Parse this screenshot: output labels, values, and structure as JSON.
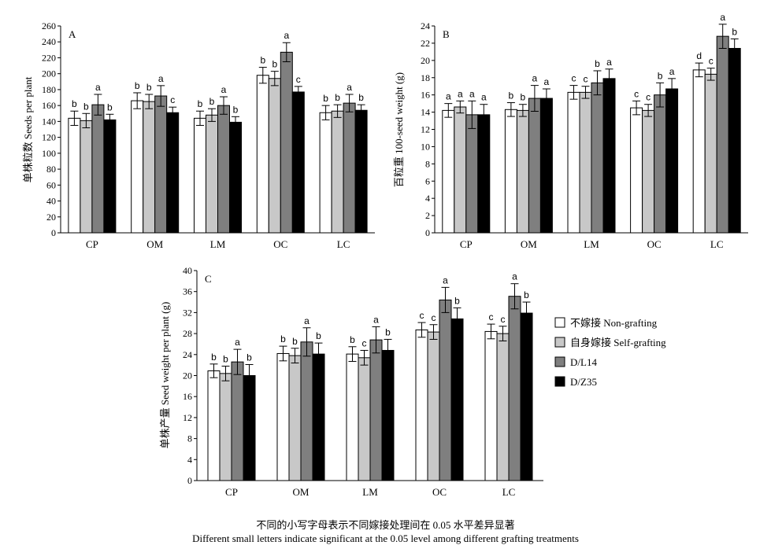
{
  "chart_data": [
    {
      "type": "bar",
      "panel_label": "A",
      "ylabel": "单株粒数 Seeds per plant",
      "ylim": [
        0,
        260
      ],
      "yticks": [
        0,
        20,
        40,
        60,
        80,
        100,
        120,
        140,
        160,
        180,
        200,
        220,
        240,
        260
      ],
      "categories": [
        "CP",
        "OM",
        "LM",
        "OC",
        "LC"
      ],
      "series": [
        {
          "name": "不嫁接 Non-grafting",
          "color": "#ffffff",
          "values": [
            144,
            166,
            144,
            198,
            151
          ],
          "errors": [
            9,
            10,
            9,
            10,
            9
          ],
          "letters": [
            "b",
            "b",
            "b",
            "b",
            "b"
          ]
        },
        {
          "name": "自身嫁接 Self-grafting",
          "color": "#c8c8c8",
          "values": [
            141,
            165,
            148,
            194,
            153
          ],
          "errors": [
            9,
            9,
            8,
            9,
            8
          ],
          "letters": [
            "b",
            "b",
            "b",
            "b",
            "b"
          ]
        },
        {
          "name": "D/L14",
          "color": "#7f7f7f",
          "values": [
            161,
            172,
            160,
            227,
            163
          ],
          "errors": [
            13,
            13,
            11,
            12,
            11
          ],
          "letters": [
            "a",
            "a",
            "a",
            "a",
            "a"
          ]
        },
        {
          "name": "D/Z35",
          "color": "#000000",
          "values": [
            142,
            151,
            139,
            177,
            154
          ],
          "errors": [
            7,
            7,
            7,
            7,
            7
          ],
          "letters": [
            "b",
            "c",
            "b",
            "c",
            "b"
          ]
        }
      ]
    },
    {
      "type": "bar",
      "panel_label": "B",
      "ylabel": "百粒重 100-seed weight (g)",
      "ylim": [
        0,
        24
      ],
      "yticks": [
        0,
        2,
        4,
        6,
        8,
        10,
        12,
        14,
        16,
        18,
        20,
        22,
        24
      ],
      "categories": [
        "CP",
        "OM",
        "LM",
        "OC",
        "LC"
      ],
      "series": [
        {
          "name": "不嫁接 Non-grafting",
          "color": "#ffffff",
          "values": [
            14.2,
            14.3,
            16.3,
            14.5,
            18.9
          ],
          "errors": [
            0.8,
            0.8,
            0.8,
            0.8,
            0.8
          ],
          "letters": [
            "a",
            "b",
            "c",
            "c",
            "d"
          ]
        },
        {
          "name": "自身嫁接 Self-grafting",
          "color": "#c8c8c8",
          "values": [
            14.6,
            14.2,
            16.3,
            14.2,
            18.4
          ],
          "errors": [
            0.7,
            0.7,
            0.7,
            0.7,
            0.7
          ],
          "letters": [
            "a",
            "b",
            "c",
            "c",
            "c"
          ]
        },
        {
          "name": "D/L14",
          "color": "#7f7f7f",
          "values": [
            13.7,
            15.6,
            17.4,
            16.0,
            22.8
          ],
          "errors": [
            1.6,
            1.5,
            1.4,
            1.4,
            1.4
          ],
          "letters": [
            "a",
            "a",
            "b",
            "b",
            "a"
          ]
        },
        {
          "name": "D/Z35",
          "color": "#000000",
          "values": [
            13.7,
            15.6,
            17.9,
            16.7,
            21.4
          ],
          "errors": [
            1.2,
            1.1,
            1.1,
            1.2,
            1.1
          ],
          "letters": [
            "a",
            "a",
            "a",
            "a",
            "b"
          ]
        }
      ]
    },
    {
      "type": "bar",
      "panel_label": "C",
      "ylabel": "单株产量 Seed weight per plant (g)",
      "ylim": [
        0,
        40
      ],
      "yticks": [
        0,
        4,
        8,
        12,
        16,
        20,
        24,
        28,
        32,
        36,
        40
      ],
      "categories": [
        "CP",
        "OM",
        "LM",
        "OC",
        "LC"
      ],
      "series": [
        {
          "name": "不嫁接 Non-grafting",
          "color": "#ffffff",
          "values": [
            20.9,
            24.2,
            24.1,
            28.7,
            28.4
          ],
          "errors": [
            1.3,
            1.4,
            1.4,
            1.4,
            1.4
          ],
          "letters": [
            "b",
            "b",
            "b",
            "c",
            "c"
          ]
        },
        {
          "name": "自身嫁接 Self-grafting",
          "color": "#c8c8c8",
          "values": [
            20.4,
            23.8,
            23.4,
            28.3,
            28.0
          ],
          "errors": [
            1.4,
            1.4,
            1.4,
            1.4,
            1.4
          ],
          "letters": [
            "b",
            "b",
            "c",
            "c",
            "c"
          ]
        },
        {
          "name": "D/L14",
          "color": "#7f7f7f",
          "values": [
            22.6,
            26.4,
            26.8,
            34.4,
            35.1
          ],
          "errors": [
            2.4,
            2.7,
            2.5,
            2.4,
            2.4
          ],
          "letters": [
            "a",
            "a",
            "a",
            "a",
            "a"
          ]
        },
        {
          "name": "D/Z35",
          "color": "#000000",
          "values": [
            20.0,
            24.1,
            24.8,
            30.8,
            31.9
          ],
          "errors": [
            2.1,
            2.1,
            2.1,
            2.1,
            2.1
          ],
          "letters": [
            "b",
            "b",
            "b",
            "b",
            "b"
          ]
        }
      ]
    }
  ],
  "legend": [
    {
      "label": "不嫁接 Non-grafting",
      "color": "#ffffff"
    },
    {
      "label": "自身嫁接 Self-grafting",
      "color": "#c8c8c8"
    },
    {
      "label": "D/L14",
      "color": "#7f7f7f"
    },
    {
      "label": "D/Z35",
      "color": "#000000"
    }
  ],
  "caption": {
    "cn": "不同的小写字母表示不同嫁接处理间在 0.05 水平差异显著",
    "en": "Different small letters indicate significant at the 0.05 level among different grafting treatments"
  }
}
